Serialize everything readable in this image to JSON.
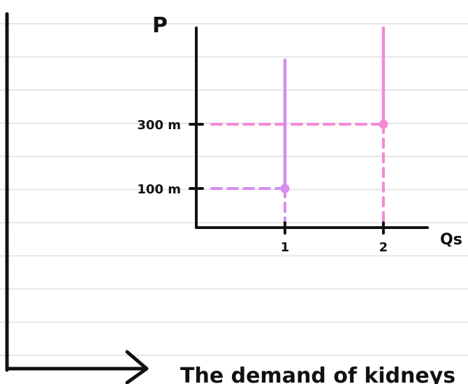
{
  "chart_data": {
    "type": "line",
    "xlabel": "Qs",
    "ylabel": "P",
    "x_ticks": [
      "1",
      "2"
    ],
    "y_ticks": [
      "100 m",
      "300 m"
    ],
    "series": [
      {
        "color": "#d68cf0",
        "x": [
          1,
          1
        ],
        "y": [
          100,
          500
        ],
        "point": [
          1,
          100
        ]
      },
      {
        "color": "#f38ad9",
        "x": [
          2,
          2
        ],
        "y": [
          300,
          600
        ],
        "point": [
          2,
          300
        ]
      }
    ],
    "guides": [
      {
        "x": 1,
        "y": 100,
        "color": "#d68cf0"
      },
      {
        "x": 2,
        "y": 300,
        "color": "#f38ad9"
      }
    ]
  },
  "caption": "The demand of kidneys"
}
